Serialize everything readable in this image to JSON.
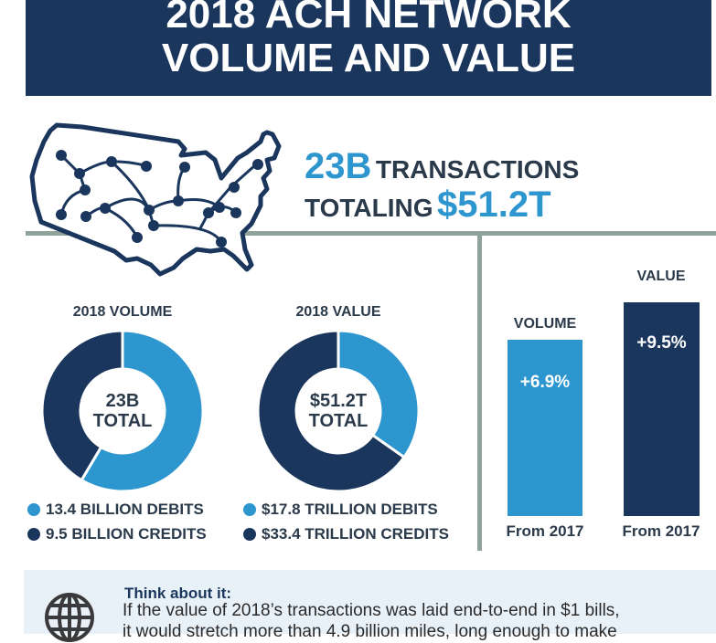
{
  "header": {
    "line1": "2018 ACH NETWORK",
    "line2": "VOLUME AND VALUE"
  },
  "summary": {
    "count": "23B",
    "count_label": "TRANSACTIONS",
    "total_label": "TOTALING",
    "total": "$51.2T"
  },
  "colors": {
    "navy": "#1b365d",
    "blue": "#2e96cf",
    "divider": "#8fa39a"
  },
  "chart_data": [
    {
      "type": "pie",
      "title": "2018 VOLUME",
      "center_label": [
        "23B",
        "TOTAL"
      ],
      "categories": [
        "Debits",
        "Credits"
      ],
      "values": [
        13.4,
        9.5
      ],
      "unit": "billion",
      "legend": [
        "13.4 BILLION DEBITS",
        "9.5 BILLION CREDITS"
      ]
    },
    {
      "type": "pie",
      "title": "2018 VALUE",
      "center_label": [
        "$51.2T",
        "TOTAL"
      ],
      "categories": [
        "Debits",
        "Credits"
      ],
      "values": [
        17.8,
        33.4
      ],
      "unit": "trillion",
      "legend": [
        "$17.8 TRILLION DEBITS",
        "$33.4 TRILLION CREDITS"
      ]
    },
    {
      "type": "bar",
      "categories": [
        "VOLUME",
        "VALUE"
      ],
      "values": [
        6.9,
        9.5
      ],
      "labels": [
        "+6.9%",
        "+9.5%"
      ],
      "xlabels": [
        "From 2017",
        "From 2017"
      ]
    }
  ],
  "panel": {
    "title": "Think about it:",
    "line1": "If the value of 2018’s transactions was laid end-to-end in $1 bills,",
    "line2": "it would stretch more than 4.9 billion miles, long enough to make"
  }
}
